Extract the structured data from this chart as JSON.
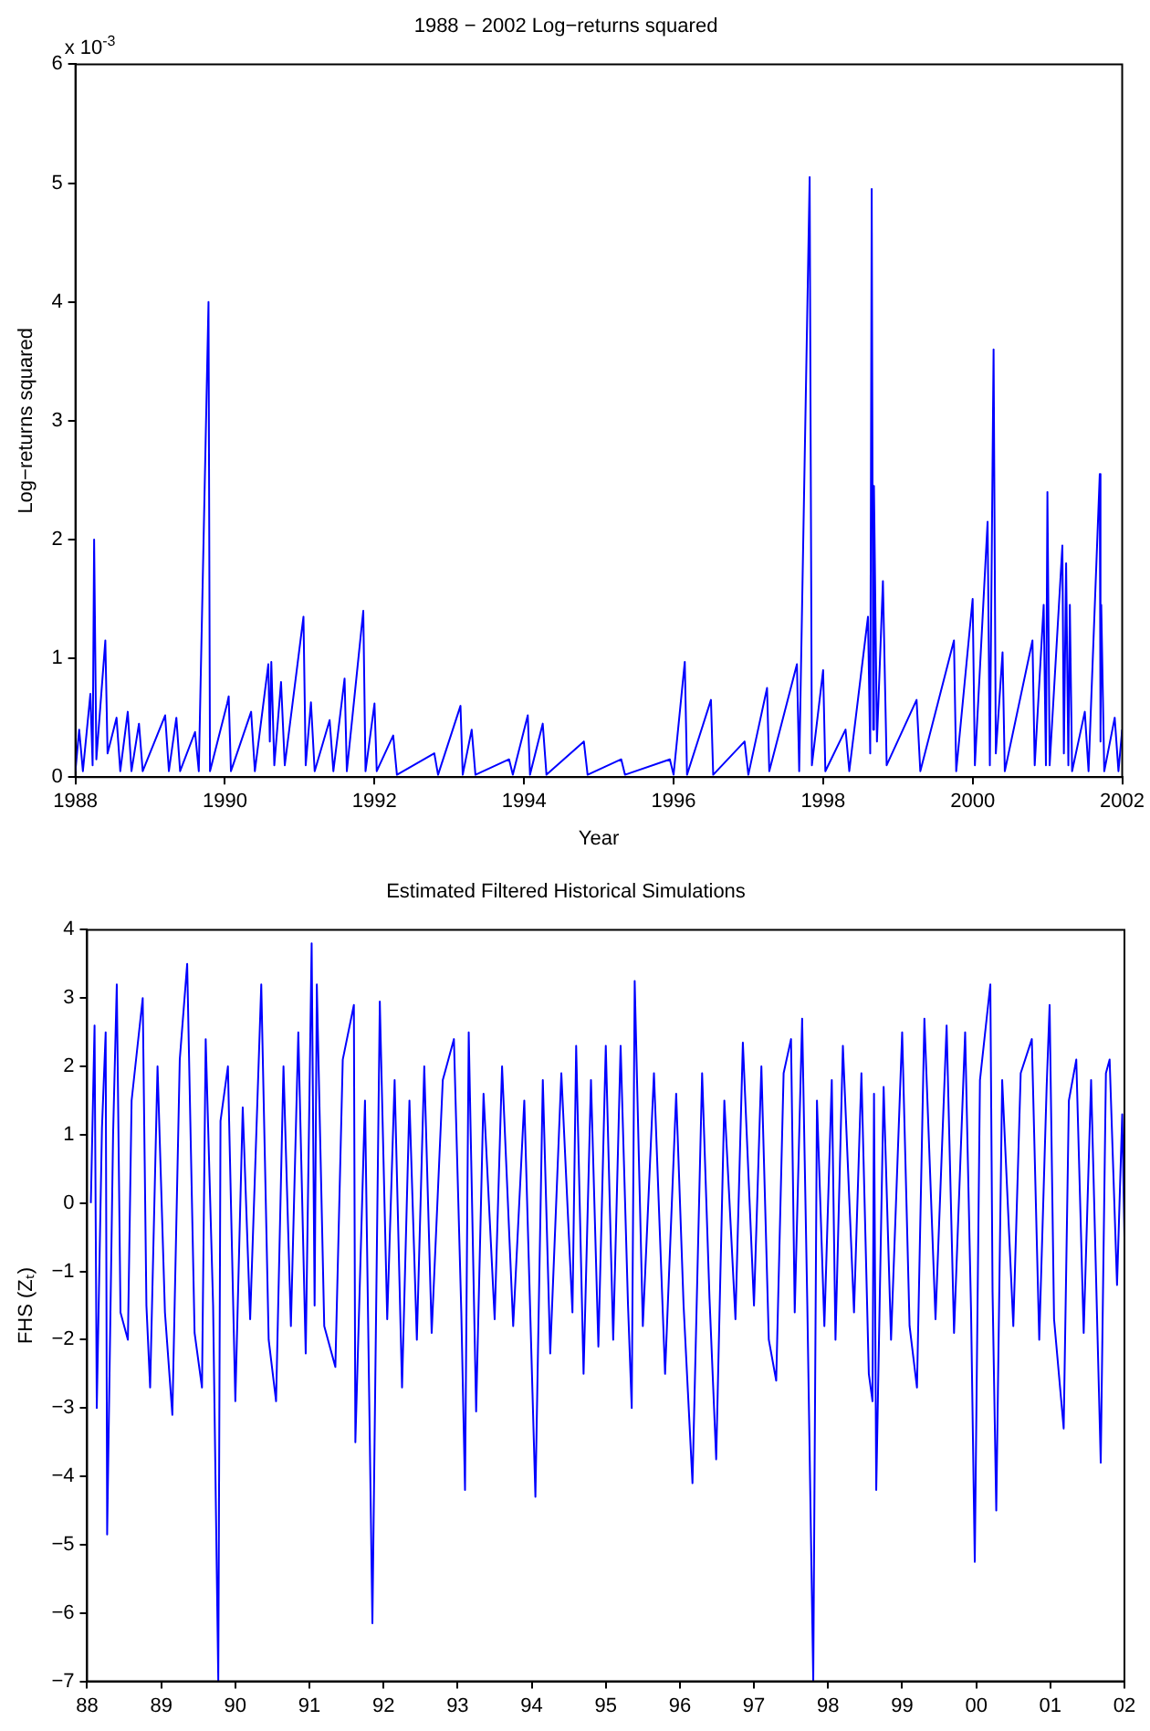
{
  "chart_data": [
    {
      "type": "line",
      "title": "1988 − 2002 Log−returns squared",
      "xlabel": "Year",
      "ylabel": "Log−returns squared",
      "annotations": [
        "x 10$^{-3}$"
      ],
      "xlim": [
        1988,
        2002
      ],
      "xticks": [
        1988,
        1990,
        1992,
        1994,
        1996,
        1998,
        2000,
        2002
      ],
      "ylim": [
        0,
        6
      ],
      "yticks": [
        0,
        1,
        2,
        3,
        4,
        5,
        6
      ],
      "grid": false,
      "legend": false,
      "marker": "none",
      "line_style": "solid",
      "series": [
        {
          "color": "#0000ff",
          "x": [
            1988.0,
            1988.05,
            1988.1,
            1988.2,
            1988.23,
            1988.25,
            1988.28,
            1988.4,
            1988.43,
            1988.55,
            1988.6,
            1988.7,
            1988.75,
            1988.85,
            1988.9,
            1989.2,
            1989.25,
            1989.35,
            1989.4,
            1989.6,
            1989.65,
            1989.78,
            1989.8,
            1990.03,
            1990.05,
            1990.08,
            1990.35,
            1990.4,
            1990.58,
            1990.6,
            1990.62,
            1990.66,
            1990.75,
            1990.8,
            1991.05,
            1991.08,
            1991.15,
            1991.2,
            1991.4,
            1991.45,
            1991.6,
            1991.63,
            1991.85,
            1991.88,
            1992.0,
            1992.03,
            1992.25,
            1992.3,
            1992.8,
            1992.85,
            1993.15,
            1993.18,
            1993.3,
            1993.35,
            1993.8,
            1993.85,
            1994.05,
            1994.08,
            1994.25,
            1994.3,
            1994.8,
            1994.85,
            1995.3,
            1995.35,
            1995.95,
            1996.0,
            1996.15,
            1996.18,
            1996.5,
            1996.53,
            1996.95,
            1997.0,
            1997.25,
            1997.28,
            1997.65,
            1997.68,
            1997.82,
            1997.85,
            1998.0,
            1998.03,
            1998.3,
            1998.35,
            1998.6,
            1998.63,
            1998.65,
            1998.67,
            1998.68,
            1998.72,
            1998.8,
            1998.85,
            1999.25,
            1999.3,
            1999.75,
            1999.78,
            2000.0,
            2000.03,
            2000.2,
            2000.23,
            2000.28,
            2000.31,
            2000.4,
            2000.43,
            2000.8,
            2000.83,
            2000.95,
            2000.98,
            2001.0,
            2001.03,
            2001.2,
            2001.22,
            2001.25,
            2001.28,
            2001.3,
            2001.33,
            2001.5,
            2001.55,
            2001.7,
            2001.71,
            2001.72,
            2001.76,
            2001.9,
            2001.95,
            2002.0
          ],
          "values": [
            0.05,
            0.4,
            0.05,
            0.7,
            0.1,
            2.0,
            0.15,
            1.15,
            0.2,
            0.5,
            0.05,
            0.55,
            0.05,
            0.45,
            0.05,
            0.52,
            0.05,
            0.5,
            0.05,
            0.38,
            0.05,
            4.0,
            0.05,
            0.62,
            0.68,
            0.05,
            0.55,
            0.05,
            0.95,
            0.3,
            0.97,
            0.1,
            0.8,
            0.1,
            1.35,
            0.1,
            0.63,
            0.05,
            0.48,
            0.05,
            0.83,
            0.05,
            1.4,
            0.05,
            0.62,
            0.05,
            0.35,
            0.02,
            0.2,
            0.02,
            0.6,
            0.02,
            0.4,
            0.02,
            0.15,
            0.02,
            0.52,
            0.02,
            0.45,
            0.02,
            0.3,
            0.02,
            0.15,
            0.02,
            0.15,
            0.02,
            0.97,
            0.02,
            0.65,
            0.02,
            0.3,
            0.02,
            0.75,
            0.05,
            0.95,
            0.05,
            5.05,
            0.1,
            0.9,
            0.05,
            0.4,
            0.05,
            1.35,
            0.2,
            4.95,
            0.4,
            2.45,
            0.3,
            1.65,
            0.1,
            0.65,
            0.05,
            1.15,
            0.05,
            1.5,
            0.1,
            2.15,
            0.1,
            3.6,
            0.2,
            1.05,
            0.05,
            1.15,
            0.1,
            1.45,
            0.1,
            2.4,
            0.1,
            1.95,
            0.2,
            1.8,
            0.1,
            1.45,
            0.05,
            0.55,
            0.05,
            2.55,
            0.3,
            1.45,
            0.05,
            0.5,
            0.05,
            0.4
          ]
        }
      ]
    },
    {
      "type": "line",
      "title": "Estimated Filtered Historical Simulations",
      "ylabel": "FHS (Zₜ)",
      "xlim": [
        1988,
        2002
      ],
      "xticks": [
        {
          "value": 1988,
          "label": "88"
        },
        {
          "value": 1989,
          "label": "89"
        },
        {
          "value": 1990,
          "label": "90"
        },
        {
          "value": 1991,
          "label": "91"
        },
        {
          "value": 1992,
          "label": "92"
        },
        {
          "value": 1993,
          "label": "93"
        },
        {
          "value": 1994,
          "label": "94"
        },
        {
          "value": 1995,
          "label": "95"
        },
        {
          "value": 1996,
          "label": "96"
        },
        {
          "value": 1997,
          "label": "97"
        },
        {
          "value": 1998,
          "label": "98"
        },
        {
          "value": 1999,
          "label": "99"
        },
        {
          "value": 2000,
          "label": "00"
        },
        {
          "value": 2001,
          "label": "01"
        },
        {
          "value": 2002,
          "label": "02"
        }
      ],
      "ylim": [
        -7,
        4
      ],
      "yticks": [
        {
          "value": -7,
          "label": "−7"
        },
        {
          "value": -6,
          "label": "−6"
        },
        {
          "value": -5,
          "label": "−5"
        },
        {
          "value": -4,
          "label": "−4"
        },
        {
          "value": -3,
          "label": "−3"
        },
        {
          "value": -2,
          "label": "−2"
        },
        {
          "value": -1,
          "label": "−1"
        },
        0,
        1,
        2,
        3,
        4
      ],
      "grid": false,
      "legend": false,
      "marker": "none",
      "line_style": "solid",
      "series": [
        {
          "color": "#0000ff",
          "x": [
            1988.05,
            1988.1,
            1988.13,
            1988.2,
            1988.25,
            1988.27,
            1988.35,
            1988.4,
            1988.45,
            1988.55,
            1988.6,
            1988.75,
            1988.8,
            1988.85,
            1988.95,
            1989.05,
            1989.15,
            1989.25,
            1989.35,
            1989.45,
            1989.55,
            1989.6,
            1989.7,
            1989.77,
            1989.8,
            1989.9,
            1990.0,
            1990.1,
            1990.2,
            1990.35,
            1990.45,
            1990.55,
            1990.65,
            1990.75,
            1990.85,
            1990.95,
            1991.03,
            1991.07,
            1991.1,
            1991.2,
            1991.35,
            1991.45,
            1991.6,
            1991.62,
            1991.75,
            1991.85,
            1991.95,
            1992.05,
            1992.15,
            1992.25,
            1992.35,
            1992.45,
            1992.55,
            1992.65,
            1992.8,
            1992.95,
            1993.05,
            1993.1,
            1993.15,
            1993.25,
            1993.35,
            1993.5,
            1993.6,
            1993.75,
            1993.9,
            1994.05,
            1994.15,
            1994.25,
            1994.4,
            1994.55,
            1994.6,
            1994.7,
            1994.8,
            1994.9,
            1995.0,
            1995.1,
            1995.2,
            1995.3,
            1995.35,
            1995.39,
            1995.5,
            1995.65,
            1995.8,
            1995.95,
            1996.05,
            1996.17,
            1996.3,
            1996.4,
            1996.49,
            1996.6,
            1996.75,
            1996.85,
            1997.0,
            1997.1,
            1997.2,
            1997.3,
            1997.4,
            1997.5,
            1997.55,
            1997.65,
            1997.72,
            1997.8,
            1997.85,
            1997.95,
            1998.05,
            1998.1,
            1998.2,
            1998.35,
            1998.45,
            1998.55,
            1998.6,
            1998.62,
            1998.65,
            1998.75,
            1998.85,
            1999.0,
            1999.1,
            1999.2,
            1999.3,
            1999.45,
            1999.6,
            1999.7,
            1999.85,
            1999.93,
            1999.98,
            2000.05,
            2000.19,
            2000.22,
            2000.27,
            2000.35,
            2000.5,
            2000.6,
            2000.75,
            2000.85,
            2000.95,
            2000.99,
            2001.05,
            2001.18,
            2001.25,
            2001.35,
            2001.45,
            2001.55,
            2001.68,
            2001.75,
            2001.8,
            2001.9,
            2001.97,
            2002.0
          ],
          "values": [
            0,
            2.6,
            -3.0,
            1.1,
            2.5,
            -4.85,
            1.0,
            3.2,
            -1.6,
            -2.0,
            1.5,
            3.0,
            -1.5,
            -2.7,
            2.0,
            -1.6,
            -3.1,
            2.1,
            3.5,
            -1.9,
            -2.7,
            2.4,
            -1.5,
            -7,
            1.2,
            2.0,
            -2.9,
            1.4,
            -1.7,
            3.2,
            -2.0,
            -2.9,
            2.0,
            -1.8,
            2.5,
            -2.2,
            3.8,
            -1.5,
            3.2,
            -1.8,
            -2.4,
            2.1,
            2.9,
            -3.5,
            1.5,
            -6.15,
            2.95,
            -1.7,
            1.8,
            -2.7,
            1.5,
            -2.0,
            2.0,
            -1.9,
            1.8,
            2.4,
            -1.6,
            -4.2,
            2.5,
            -3.05,
            1.6,
            -1.7,
            2.0,
            -1.8,
            1.5,
            -4.3,
            1.8,
            -2.2,
            1.9,
            -1.6,
            2.3,
            -2.5,
            1.8,
            -2.1,
            2.3,
            -2.0,
            2.3,
            -1.5,
            -3.0,
            3.25,
            -1.8,
            1.9,
            -2.5,
            1.6,
            -1.5,
            -4.1,
            1.9,
            -1.4,
            -3.75,
            1.5,
            -1.7,
            2.35,
            -1.5,
            2.0,
            -2.0,
            -2.6,
            1.9,
            2.4,
            -1.6,
            2.7,
            -1.5,
            -7,
            1.5,
            -1.8,
            1.8,
            -2.0,
            2.3,
            -1.6,
            1.9,
            -2.5,
            -2.9,
            1.6,
            -4.2,
            1.7,
            -2.0,
            2.5,
            -1.8,
            -2.7,
            2.7,
            -1.7,
            2.6,
            -1.9,
            2.5,
            -1.6,
            -5.25,
            1.8,
            3.2,
            -1.3,
            -4.5,
            1.8,
            -1.8,
            1.9,
            2.4,
            -2.0,
            1.7,
            2.9,
            -1.7,
            -3.3,
            1.5,
            2.1,
            -1.9,
            1.8,
            -3.8,
            1.9,
            2.1,
            -1.2,
            1.3,
            -0.5
          ]
        }
      ]
    }
  ]
}
